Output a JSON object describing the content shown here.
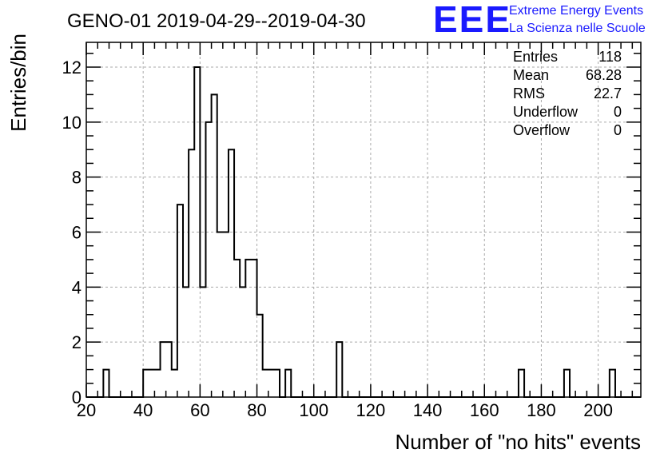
{
  "chart_data": {
    "type": "bar",
    "title": "GENO-01 2019-04-29--2019-04-30",
    "xlabel": "Number of \"no hits\" events",
    "ylabel": "Entries/bin",
    "xlim": [
      20,
      215
    ],
    "ylim": [
      0,
      12.9
    ],
    "x_ticks": [
      20,
      40,
      60,
      80,
      100,
      120,
      140,
      160,
      180,
      200
    ],
    "y_ticks": [
      0,
      2,
      4,
      6,
      8,
      10,
      12
    ],
    "grid": true,
    "bin_width": 2,
    "bins": [
      {
        "x": 26,
        "value": 1
      },
      {
        "x": 40,
        "value": 1
      },
      {
        "x": 42,
        "value": 1
      },
      {
        "x": 44,
        "value": 1
      },
      {
        "x": 46,
        "value": 2
      },
      {
        "x": 48,
        "value": 2
      },
      {
        "x": 50,
        "value": 1
      },
      {
        "x": 52,
        "value": 7
      },
      {
        "x": 54,
        "value": 4
      },
      {
        "x": 56,
        "value": 9
      },
      {
        "x": 58,
        "value": 12
      },
      {
        "x": 60,
        "value": 4
      },
      {
        "x": 62,
        "value": 10
      },
      {
        "x": 64,
        "value": 11
      },
      {
        "x": 66,
        "value": 6
      },
      {
        "x": 68,
        "value": 6
      },
      {
        "x": 70,
        "value": 9
      },
      {
        "x": 72,
        "value": 5
      },
      {
        "x": 74,
        "value": 4
      },
      {
        "x": 76,
        "value": 5
      },
      {
        "x": 78,
        "value": 5
      },
      {
        "x": 80,
        "value": 3
      },
      {
        "x": 82,
        "value": 1
      },
      {
        "x": 84,
        "value": 1
      },
      {
        "x": 86,
        "value": 1
      },
      {
        "x": 90,
        "value": 1
      },
      {
        "x": 108,
        "value": 2
      },
      {
        "x": 172,
        "value": 1
      },
      {
        "x": 188,
        "value": 1
      },
      {
        "x": 204,
        "value": 1
      }
    ],
    "stats": [
      {
        "label": "Entries",
        "value": "118"
      },
      {
        "label": "Mean",
        "value": "68.28"
      },
      {
        "label": "RMS",
        "value": "22.7"
      },
      {
        "label": "Underflow",
        "value": "0"
      },
      {
        "label": "Overflow",
        "value": "0"
      }
    ],
    "stats_placement": "top-right"
  },
  "logo": {
    "mark": "EEE",
    "line1": "Extreme Energy Events",
    "line2": "La Scienza nelle Scuole"
  },
  "colors": {
    "histogram": "#000000",
    "grid": "#aaaaaa",
    "logo": "#1a1aff"
  }
}
